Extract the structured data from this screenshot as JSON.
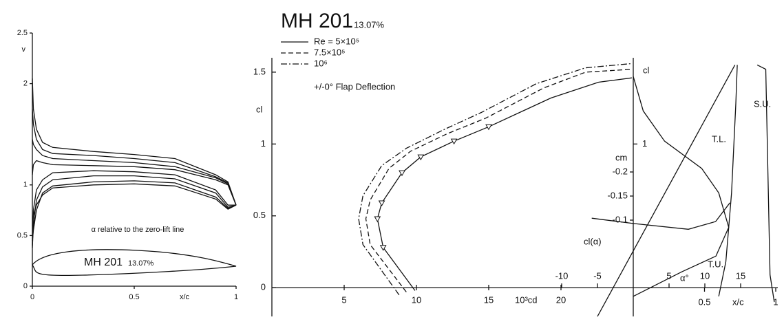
{
  "chart_data": [
    {
      "type": "line",
      "ylabel": "v",
      "xlabel": "x/c",
      "annotation": "α relative to the zero-lift line",
      "airfoil_label": "MH 201",
      "airfoil_thickness": "13.07%",
      "xlim": [
        0,
        1
      ],
      "ylim": [
        0,
        2.5
      ],
      "xticks": [
        0,
        0.5,
        1
      ],
      "yticks": [
        0,
        0.5,
        1,
        2,
        2.5
      ],
      "x": [
        0,
        0.005,
        0.02,
        0.05,
        0.1,
        0.3,
        0.5,
        0.7,
        0.9,
        0.96,
        1
      ],
      "color": "#111",
      "series": [
        {
          "values": [
            2.05,
            1.75,
            1.55,
            1.42,
            1.37,
            1.33,
            1.3,
            1.26,
            1.1,
            1.03,
            0.8
          ]
        },
        {
          "values": [
            1.75,
            1.6,
            1.45,
            1.35,
            1.31,
            1.29,
            1.26,
            1.22,
            1.08,
            1.02,
            0.8
          ]
        },
        {
          "values": [
            1.45,
            1.4,
            1.35,
            1.29,
            1.26,
            1.24,
            1.22,
            1.18,
            1.07,
            1.01,
            0.8
          ]
        },
        {
          "values": [
            1.1,
            1.2,
            1.24,
            1.22,
            1.2,
            1.19,
            1.18,
            1.15,
            1.05,
            1.0,
            0.8
          ]
        },
        {
          "values": [
            0.4,
            0.75,
            0.95,
            1.05,
            1.12,
            1.14,
            1.13,
            1.1,
            0.95,
            0.8,
            0.8
          ]
        },
        {
          "values": [
            0.38,
            0.6,
            0.85,
            0.98,
            1.05,
            1.09,
            1.09,
            1.06,
            0.92,
            0.78,
            0.8
          ]
        },
        {
          "values": [
            0.45,
            0.55,
            0.75,
            0.92,
            0.99,
            1.03,
            1.04,
            1.02,
            0.88,
            0.77,
            0.8
          ]
        },
        {
          "values": [
            0.6,
            0.7,
            0.8,
            0.9,
            0.97,
            1.0,
            1.01,
            0.99,
            0.86,
            0.76,
            0.8
          ]
        }
      ]
    },
    {
      "type": "polar",
      "title": "MH 201",
      "subtitle": "13.07%",
      "note": "+/-0° Flap Deflection",
      "ylabel": "cl",
      "xlabel": "10³cd",
      "xlim": [
        0,
        25
      ],
      "ylim": [
        -0.2,
        1.6
      ],
      "xticks": [
        5,
        10,
        15,
        20
      ],
      "yticks": [
        0,
        0.5,
        1,
        1.5
      ],
      "color": "#111",
      "series": [
        {
          "name": "Re = 5×10⁵",
          "dash": "solid",
          "marker": "triangle-down",
          "x": [
            9.9,
            7.7,
            7.3,
            7.6,
            9.0,
            10.3,
            12.6,
            15.0,
            19.3,
            22.6,
            24.9
          ],
          "values": [
            -0.02,
            0.28,
            0.48,
            0.59,
            0.8,
            0.91,
            1.02,
            1.12,
            1.32,
            1.43,
            1.46
          ]
        },
        {
          "name": "7.5×10⁵",
          "dash": "dashed",
          "x": [
            9.3,
            6.8,
            6.5,
            6.8,
            8.1,
            9.6,
            12.1,
            14.8,
            18.8,
            21.7,
            24.9
          ],
          "values": [
            -0.03,
            0.3,
            0.48,
            0.61,
            0.83,
            0.95,
            1.07,
            1.18,
            1.39,
            1.5,
            1.52
          ]
        },
        {
          "name": "10⁶",
          "dash": "dashdot",
          "x": [
            8.8,
            6.3,
            6.0,
            6.3,
            7.6,
            9.3,
            11.9,
            14.5,
            18.3,
            21.7,
            24.9
          ],
          "values": [
            -0.05,
            0.3,
            0.48,
            0.64,
            0.85,
            0.97,
            1.1,
            1.22,
            1.42,
            1.53,
            1.56
          ]
        }
      ]
    },
    {
      "type": "aero",
      "ylabel": "cl",
      "yticks_right": [
        1
      ],
      "alpha_label": "α°",
      "cm_label": "cm",
      "xc_label": "x/c",
      "labels": [
        "cl(α)",
        "T.L.",
        "T.U.",
        "S.U."
      ],
      "ylim": [
        -0.2,
        1.6
      ],
      "alphalim": [
        -10,
        20
      ],
      "xclim": [
        0,
        1
      ],
      "cmlim": [
        0.1,
        -0.44
      ],
      "alphaticks": [
        -10,
        -5,
        5,
        10,
        15
      ],
      "xcticks": [
        0.5,
        1
      ],
      "cmticks": [
        -0.1,
        -0.15,
        -0.2
      ],
      "color": "#111",
      "series": [
        {
          "axis": "alpha",
          "x": [
            -5,
            14.2
          ],
          "values": [
            -0.2,
            1.55
          ]
        },
        {
          "axis": "cm",
          "x": [
            -5.8,
            0,
            7.7,
            11.5,
            13.5
          ],
          "values": [
            -0.104,
            -0.093,
            -0.081,
            -0.097,
            -0.136
          ]
        },
        {
          "axis": "xc",
          "x": [
            0,
            0.07,
            0.22,
            0.48,
            0.6,
            0.67,
            0.65,
            0.6
          ],
          "values": [
            1.47,
            1.23,
            1.02,
            0.83,
            0.66,
            0.42,
            0.18,
            -0.06
          ]
        },
        {
          "axis": "xc",
          "x": [
            0,
            0.34,
            0.58,
            0.67,
            0.69,
            0.72,
            0.73
          ],
          "values": [
            -0.06,
            0.11,
            0.22,
            0.42,
            0.66,
            1.28,
            1.55
          ]
        },
        {
          "axis": "xc",
          "x": [
            0.87,
            0.93,
            0.94,
            0.96,
            0.99
          ],
          "values": [
            1.55,
            1.52,
            1.04,
            0.09,
            -0.1
          ]
        }
      ]
    }
  ]
}
